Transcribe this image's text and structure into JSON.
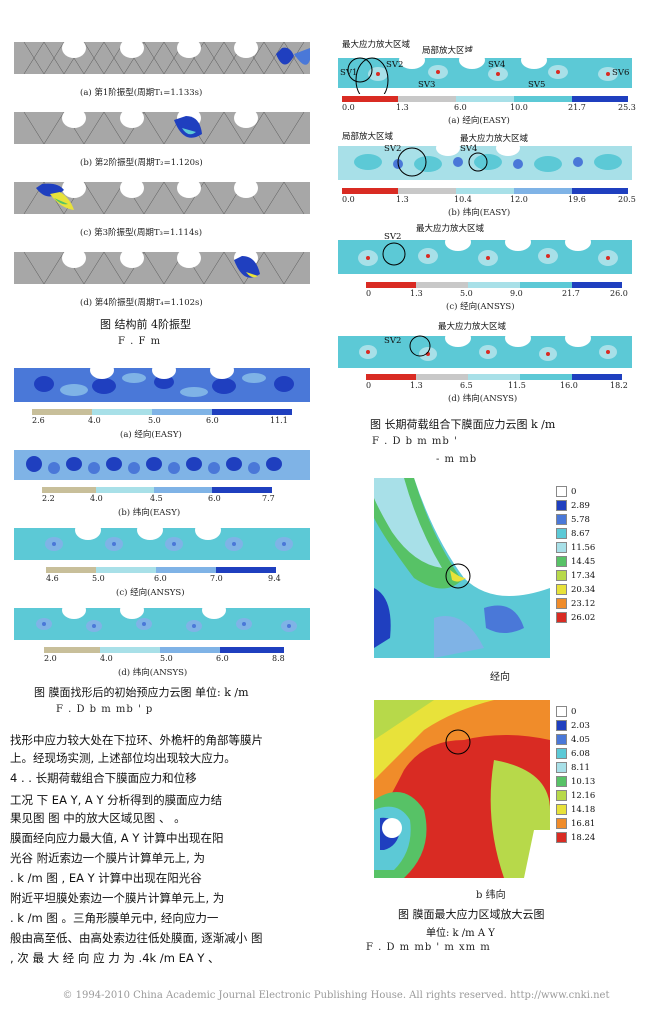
{
  "figure_left": {
    "modes": [
      {
        "caption": "(a) 第1阶振型(周期T₁=1.133s)"
      },
      {
        "caption": "(b) 第2阶振型(周期T₂=1.120s)"
      },
      {
        "caption": "(c) 第3阶振型(周期T₃=1.114s)"
      },
      {
        "caption": "(d) 第4阶振型(周期T₄=1.102s)"
      }
    ],
    "title": "图    结构前 4阶振型",
    "subtitle": "F .    F         m"
  },
  "figure_prestress": {
    "panels": [
      {
        "caption": "(a) 经向(EASY)",
        "ticks": [
          "2.6",
          "4.0",
          "5.0",
          "6.0",
          "11.1"
        ]
      },
      {
        "caption": "(b) 纬向(EASY)",
        "ticks": [
          "2.2",
          "4.0",
          "4.5",
          "6.0",
          "7.7"
        ]
      },
      {
        "caption": "(c) 经向(ANSYS)",
        "ticks": [
          "4.6",
          "5.0",
          "6.0",
          "7.0",
          "9.4"
        ]
      },
      {
        "caption": "(d) 纬向(ANSYS)",
        "ticks": [
          "2.0",
          "4.0",
          "5.0",
          "6.0",
          "8.8"
        ]
      }
    ],
    "title": "图      膜面找形后的初始预应力云图  单位: k  /m",
    "subtitle": "F .      D    b         m mb   '         p"
  },
  "figure_longterm": {
    "panels": [
      {
        "caption": "(a) 经向(EASY)",
        "ticks": [
          "0.0",
          "1.3",
          "6.0",
          "10.0",
          "21.7",
          "25.3"
        ],
        "labels": [
          "最大应力放大区域",
          "局部放大区域"
        ],
        "sv": [
          "SV1",
          "SV2",
          "SV3",
          "SV4",
          "SV5",
          "SV6"
        ]
      },
      {
        "caption": "(b) 纬向(EASY)",
        "ticks": [
          "0.0",
          "1.3",
          "10.4",
          "12.0",
          "19.6",
          "20.5"
        ],
        "labels": [
          "局部放大区域",
          "最大应力放大区域"
        ],
        "sv": [
          "SV2",
          "SV4"
        ]
      },
      {
        "caption": "(c) 经向(ANSYS)",
        "ticks": [
          "0",
          "1.3",
          "5.0",
          "9.0",
          "21.7",
          "26.0"
        ],
        "labels": [
          "最大应力放大区域"
        ],
        "sv": [
          "SV2"
        ]
      },
      {
        "caption": "(d) 纬向(ANSYS)",
        "ticks": [
          "0",
          "1.3",
          "6.5",
          "11.5",
          "16.0",
          "18.2"
        ],
        "labels": [
          "最大应力放大区域"
        ],
        "sv": [
          "SV2"
        ]
      }
    ],
    "title": "图      长期荷载组合下膜面应力云图  k  /m",
    "subtitle": "F .     D    b         m mb   '",
    "subtitle2": "-   m          mb"
  },
  "figure_zoom": {
    "warp": {
      "caption": "经向",
      "legend": [
        "0",
        "2.89",
        "5.78",
        "8.67",
        "11.56",
        "14.45",
        "17.34",
        "20.34",
        "23.12",
        "26.02"
      ]
    },
    "weft": {
      "caption": "b  纬向",
      "legend": [
        "0",
        "2.03",
        "4.05",
        "6.08",
        "8.11",
        "10.13",
        "12.16",
        "14.18",
        "16.81",
        "18.24"
      ]
    },
    "title": "图      膜面最大应力区域放大云图",
    "unit": "单位: k  /m    A    Y",
    "subtitle": "F .      D              m mb      '   m xm m"
  },
  "body_text": {
    "lines": [
      "找形中应力较大处在下拉环、外桅杆的角部等膜片",
      "上。经现场实测, 上述部位均出现较大应力。",
      "4 .  .      长期荷载组合下膜面应力和位移",
      "      工况    下 EA  Y, A    Y  分析得到的膜面应力结",
      "果见图        图      中的放大区域见图      、      。",
      "      膜面经向应力最大值, A    Y  计算中出现在阳",
      "光谷          附近索边一个膜片计算单元上, 为",
      "  .   k  /m  图        , EA  Y 计算中出现在阳光谷",
      "      附近平坦膜处索边一个膜片计算单元上, 为",
      "  .  k  /m  图        。三角形膜单元中, 经向应力一",
      "般由高至低、由高处索边往低处膜面, 逐渐减小  图",
      "      , 次 最 大 经 向 应 力 为       .4k  /m    EA  Y  、"
    ]
  },
  "footer": "© 1994-2010 China Academic Journal Electronic Publishing House. All rights reserved.    http://www.cnki.net",
  "colors": {
    "deepblue": "#1f3fbf",
    "blue": "#4a78d8",
    "lightblue": "#7fb3e6",
    "cyan": "#5cc9d6",
    "paleCyan": "#a8e0e8",
    "green": "#57c266",
    "yellowgreen": "#b7d94a",
    "yellow": "#e8e23a",
    "orange": "#f08c2a",
    "red": "#d92b23",
    "gray": "#9a9a9a",
    "tan": "#c8bf9a"
  }
}
